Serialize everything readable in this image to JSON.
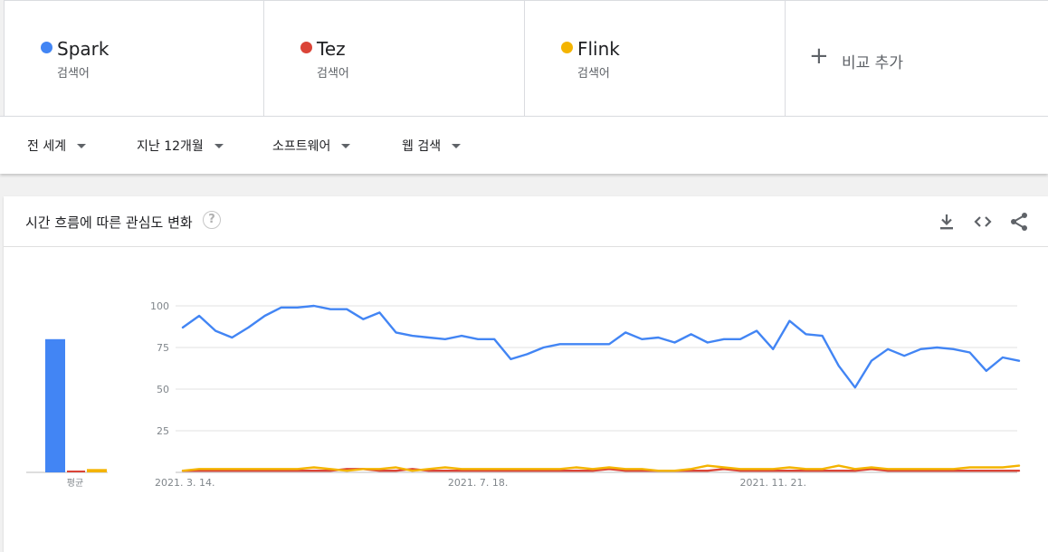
{
  "terms": [
    {
      "name": "Spark",
      "sub": "검색어",
      "color": "#4285f4"
    },
    {
      "name": "Tez",
      "sub": "검색어",
      "color": "#db4437"
    },
    {
      "name": "Flink",
      "sub": "검색어",
      "color": "#f4b400"
    }
  ],
  "add_term": {
    "label": "비교 추가",
    "icon": "plus-icon"
  },
  "filters": {
    "region": "전 세계",
    "period": "지난 12개월",
    "category": "소프트웨어",
    "search_type": "웹 검색"
  },
  "card": {
    "title": "시간 흐름에 따른 관심도 변화",
    "icons": [
      "help-icon",
      "download-icon",
      "embed-icon",
      "share-icon"
    ]
  },
  "chart_data": {
    "type": "line",
    "title": "",
    "xlabel": "",
    "ylabel": "",
    "ylim": [
      0,
      100
    ],
    "yticks": [
      100,
      75,
      50,
      25
    ],
    "xtick_labels": [
      "2021. 3. 14.",
      "2021. 7. 18.",
      "2021. 11. 21."
    ],
    "xtick_index": [
      0,
      18,
      36
    ],
    "average_label": "평균",
    "averages": [
      {
        "name": "Spark",
        "value": 80
      },
      {
        "name": "Tez",
        "value": 1
      },
      {
        "name": "Flink",
        "value": 2
      }
    ],
    "series": [
      {
        "name": "Spark",
        "color": "#4285f4",
        "values": [
          87,
          94,
          85,
          81,
          87,
          94,
          99,
          99,
          100,
          98,
          98,
          92,
          96,
          84,
          82,
          81,
          80,
          82,
          80,
          80,
          68,
          71,
          75,
          77,
          77,
          77,
          77,
          84,
          80,
          81,
          78,
          83,
          78,
          80,
          80,
          85,
          74,
          91,
          83,
          82,
          64,
          51,
          67,
          74,
          70,
          74,
          75,
          74,
          72,
          61,
          69,
          67
        ]
      },
      {
        "name": "Tez",
        "color": "#db4437",
        "values": [
          1,
          1,
          1,
          1,
          1,
          1,
          1,
          1,
          1,
          1,
          2,
          2,
          1,
          1,
          2,
          1,
          1,
          1,
          1,
          1,
          1,
          1,
          1,
          1,
          1,
          1,
          2,
          1,
          1,
          1,
          1,
          1,
          1,
          2,
          1,
          1,
          1,
          1,
          1,
          1,
          1,
          1,
          2,
          1,
          1,
          1,
          1,
          1,
          1,
          1,
          1,
          1
        ]
      },
      {
        "name": "Flink",
        "color": "#f4b400",
        "values": [
          1,
          2,
          2,
          2,
          2,
          2,
          2,
          2,
          3,
          2,
          1,
          2,
          2,
          3,
          1,
          2,
          3,
          2,
          2,
          2,
          2,
          2,
          2,
          2,
          3,
          2,
          3,
          2,
          2,
          1,
          1,
          2,
          4,
          3,
          2,
          2,
          2,
          3,
          2,
          2,
          4,
          2,
          3,
          2,
          2,
          2,
          2,
          2,
          3,
          3,
          3,
          4
        ]
      }
    ]
  }
}
